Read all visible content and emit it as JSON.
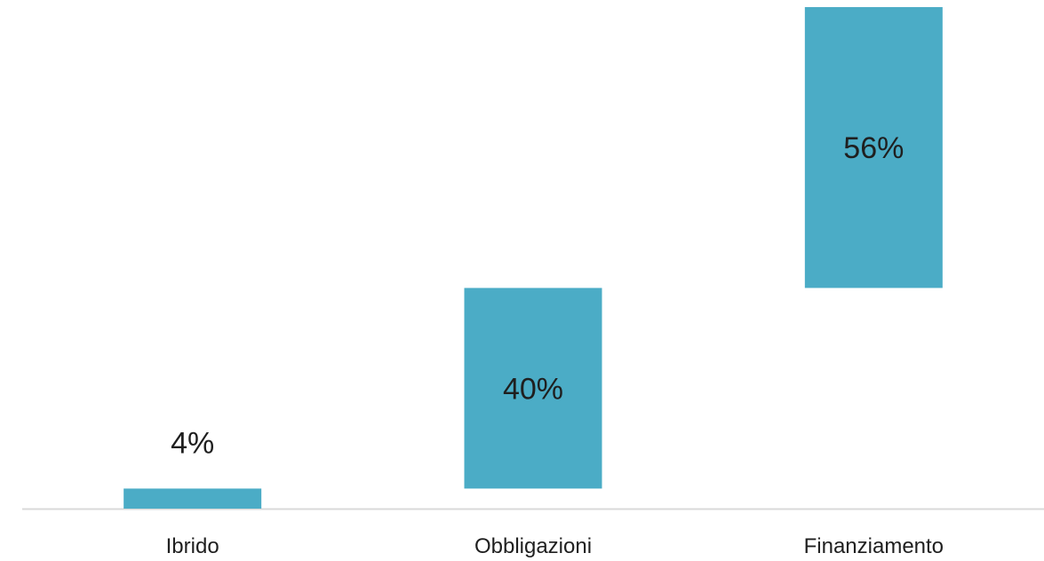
{
  "chart_data": {
    "type": "bar",
    "subtype": "waterfall",
    "categories": [
      "Ibrido",
      "Obbligazioni",
      "Finanziamento"
    ],
    "values": [
      4,
      40,
      56
    ],
    "data_labels": [
      "4%",
      "40%",
      "56%"
    ],
    "unit": "%",
    "ylim": [
      0,
      100
    ],
    "grid": false,
    "legend": "none",
    "colors": {
      "bar": "#4bacc6",
      "axis": "#d9d9d9",
      "text": "#1f1f1f"
    }
  }
}
